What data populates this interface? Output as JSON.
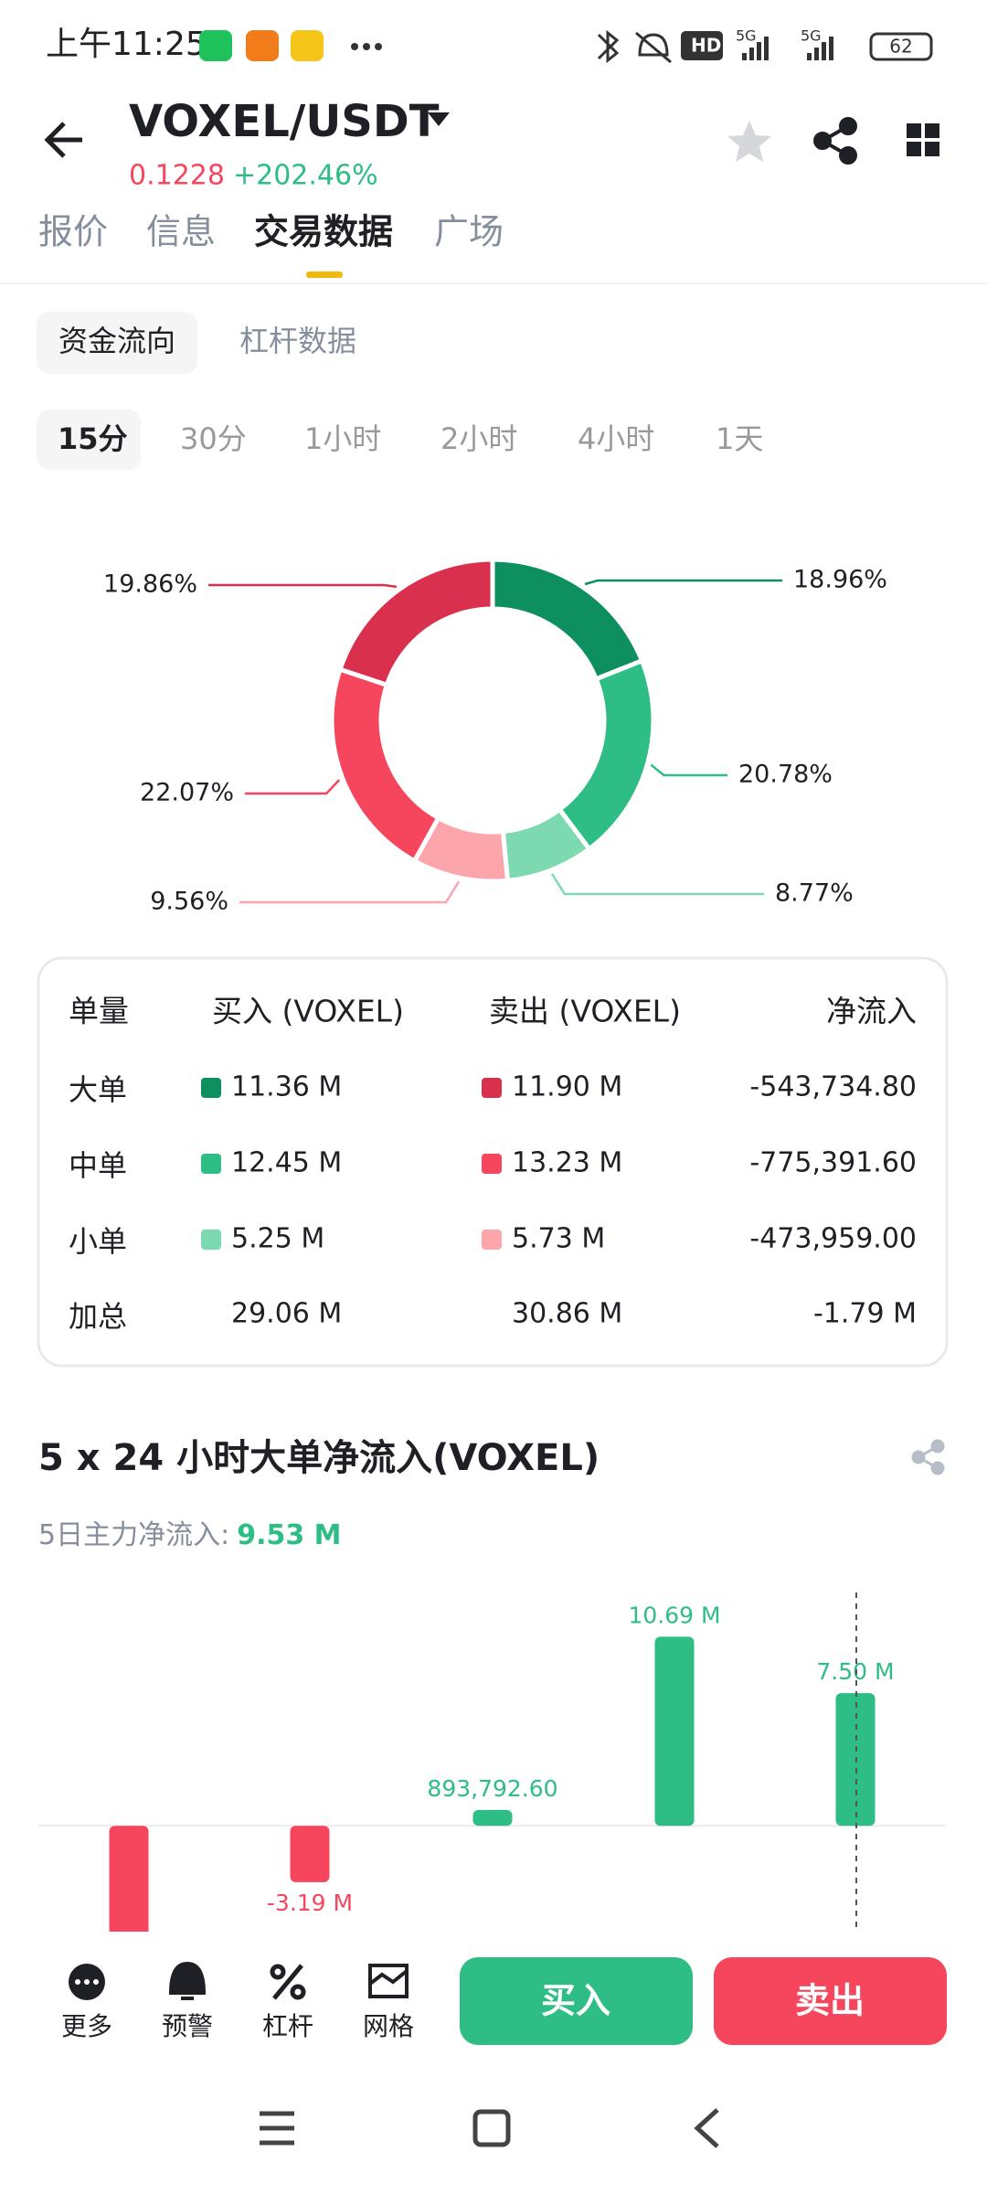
{
  "status_bar": {
    "time": "上午11:25",
    "hd": "HD",
    "network": [
      "5G",
      "5G"
    ],
    "battery": "62"
  },
  "header": {
    "pair": "VOXEL/USDT",
    "price": "0.1228",
    "change": "+202.46%"
  },
  "tabs": [
    "报价",
    "信息",
    "交易数据",
    "广场"
  ],
  "sub_tabs": [
    "资金流向",
    "杠杆数据"
  ],
  "intervals": [
    "15分",
    "30分",
    "1小时",
    "2小时",
    "4小时",
    "1天"
  ],
  "chart_data": [
    {
      "type": "pie",
      "values": [
        18.96,
        20.78,
        8.77,
        9.56,
        22.07,
        19.86
      ],
      "value_labels": [
        "18.96%",
        "20.78%",
        "8.77%",
        "9.56%",
        "22.07%",
        "19.86%"
      ],
      "colors": [
        "#0e8f5f",
        "#2ebd85",
        "#7dd9b0",
        "#fca5ab",
        "#f6465d",
        "#d9304e"
      ]
    },
    {
      "type": "bar",
      "title": "5 x 24 小时大单净流入(VOXEL)",
      "subtitle": "5日主力净流入:",
      "summary_value": "9.53 M",
      "values": [
        -6364000,
        -3190000,
        893792.6,
        10690000,
        7500000
      ],
      "value_labels": [
        null,
        "-3.19 M",
        "893,792.60",
        "10.69 M",
        "7.50 M"
      ],
      "ylim": [
        -8000000,
        12000000
      ],
      "color_positive": "#2ebd85",
      "color_negative": "#f6465d"
    }
  ],
  "table": {
    "header": [
      "单量",
      "买入 (VOXEL)",
      "卖出 (VOXEL)",
      "净流入"
    ],
    "rows": [
      [
        "大单",
        "11.36 M",
        "11.90 M",
        "-543,734.80"
      ],
      [
        "中单",
        "12.45 M",
        "13.23 M",
        "-775,391.60"
      ],
      [
        "小单",
        "5.25 M",
        "5.73 M",
        "-473,959.00"
      ],
      [
        "加总",
        "29.06 M",
        "30.86 M",
        "-1.79 M"
      ]
    ]
  },
  "bottom_bar": {
    "actions": [
      "更多",
      "预警",
      "杠杆",
      "网格"
    ],
    "buy": "买入",
    "sell": "卖出"
  }
}
